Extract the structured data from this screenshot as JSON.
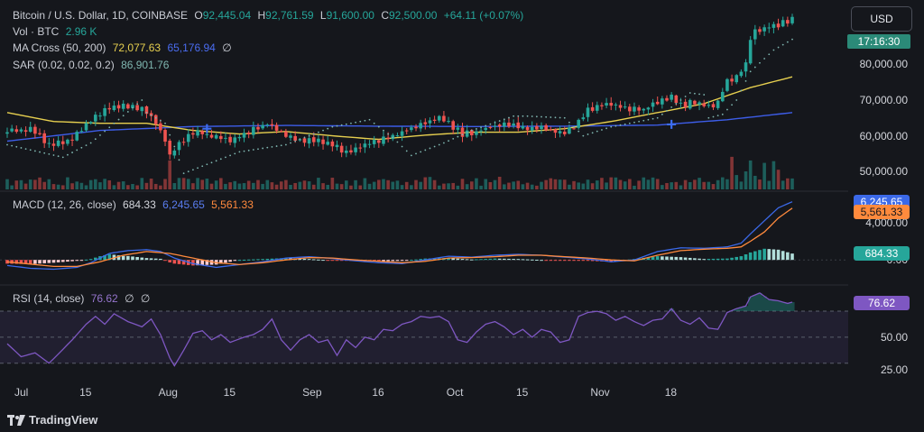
{
  "header": {
    "symbol": "Bitcoin / U.S. Dollar, 1D, COINBASE",
    "open_label": "O",
    "open": "92,445.04",
    "high_label": "H",
    "high": "92,761.59",
    "low_label": "L",
    "low": "91,600.00",
    "close_label": "C",
    "close": "92,500.00",
    "change": "+64.11 (+0.07%)"
  },
  "vol": {
    "label": "Vol · BTC",
    "value": "2.96 K"
  },
  "ma": {
    "label": "MA Cross (50, 200)",
    "fast_value": "72,077.63",
    "slow_value": "65,176.94",
    "empty": "∅"
  },
  "sar": {
    "label": "SAR (0.02, 0.02, 0.2)",
    "value": "86,901.76"
  },
  "macd_legend": {
    "label": "MACD (12, 26, close)",
    "hist": "684.33",
    "macd": "6,245.65",
    "signal": "5,561.33"
  },
  "rsi_legend": {
    "label": "RSI (14, close)",
    "value": "76.62",
    "empty1": "∅",
    "empty2": "∅"
  },
  "currency_button": "USD",
  "countdown": "17:16:30",
  "brand": "TradingView",
  "colors": {
    "up": "#26a69a",
    "down": "#ef5350",
    "ma_fast": "#e6cf4f",
    "ma_slow": "#3d5de8",
    "sar": "#7fb6b0",
    "macd": "#3b69e8",
    "signal": "#ff8a3d",
    "rsi": "#7e57c2"
  },
  "chart_data": {
    "type": "candlestick",
    "panes": {
      "price": {
        "yticks": [
          50000,
          60000,
          70000,
          80000
        ],
        "ylim": [
          45000,
          96000
        ]
      },
      "macd": {
        "yticks": [
          0,
          4000
        ],
        "ylim": [
          -2500,
          6800
        ]
      },
      "rsi": {
        "yticks": [
          25,
          50,
          75
        ],
        "ylim": [
          18,
          86
        ],
        "band": [
          30,
          70
        ]
      }
    },
    "ytick_labels": {
      "price": [
        "50,000.00",
        "60,000.00",
        "70,000.00",
        "80,000.00"
      ],
      "macd": [
        "0.00",
        "4,000.00"
      ],
      "rsi": [
        "25.00",
        "50.00",
        "75.00"
      ]
    },
    "xtick_labels": [
      "Jul",
      "15",
      "Aug",
      "15",
      "Sep",
      "16",
      "Oct",
      "15",
      "Nov",
      "18"
    ],
    "anchors": {
      "close": [
        [
          0,
          61000
        ],
        [
          5,
          62000
        ],
        [
          9,
          57500
        ],
        [
          14,
          59000
        ],
        [
          17,
          63500
        ],
        [
          20,
          66500
        ],
        [
          24,
          68500
        ],
        [
          28,
          68000
        ],
        [
          30,
          66500
        ],
        [
          32,
          64000
        ],
        [
          34,
          58500
        ],
        [
          35,
          54500
        ],
        [
          37,
          58000
        ],
        [
          40,
          61000
        ],
        [
          44,
          60000
        ],
        [
          48,
          59000
        ],
        [
          52,
          61000
        ],
        [
          56,
          63500
        ],
        [
          60,
          60000
        ],
        [
          63,
          58800
        ],
        [
          66,
          59000
        ],
        [
          70,
          57500
        ],
        [
          73,
          55500
        ],
        [
          76,
          57000
        ],
        [
          79,
          58500
        ],
        [
          83,
          59500
        ],
        [
          88,
          63000
        ],
        [
          93,
          65000
        ],
        [
          96,
          62500
        ],
        [
          98,
          60500
        ],
        [
          101,
          61000
        ],
        [
          104,
          62500
        ],
        [
          107,
          63500
        ],
        [
          111,
          62500
        ],
        [
          115,
          62000
        ],
        [
          119,
          60500
        ],
        [
          122,
          62000
        ],
        [
          125,
          67000
        ],
        [
          129,
          69000
        ],
        [
          133,
          67500
        ],
        [
          137,
          67500
        ],
        [
          140,
          69000
        ],
        [
          143,
          71500
        ],
        [
          145,
          68500
        ],
        [
          148,
          69500
        ],
        [
          151,
          68000
        ],
        [
          153,
          69500
        ],
        [
          155,
          75500
        ],
        [
          157,
          76500
        ],
        [
          159,
          80000
        ],
        [
          160,
          87500
        ],
        [
          161,
          89500
        ],
        [
          163,
          90000
        ],
        [
          165,
          91000
        ],
        [
          167,
          91500
        ],
        [
          169,
          92500
        ]
      ],
      "ma_fast": [
        [
          0,
          66500
        ],
        [
          10,
          64000
        ],
        [
          20,
          63500
        ],
        [
          30,
          63500
        ],
        [
          40,
          61500
        ],
        [
          50,
          60500
        ],
        [
          60,
          61200
        ],
        [
          70,
          60000
        ],
        [
          80,
          59000
        ],
        [
          90,
          60200
        ],
        [
          100,
          61000
        ],
        [
          110,
          61000
        ],
        [
          120,
          62000
        ],
        [
          130,
          64000
        ],
        [
          140,
          66500
        ],
        [
          150,
          69000
        ],
        [
          160,
          73500
        ],
        [
          169,
          76500
        ]
      ],
      "ma_slow": [
        [
          0,
          58500
        ],
        [
          20,
          61500
        ],
        [
          40,
          62600
        ],
        [
          60,
          62900
        ],
        [
          80,
          62700
        ],
        [
          100,
          62600
        ],
        [
          120,
          62700
        ],
        [
          140,
          63000
        ],
        [
          155,
          64500
        ],
        [
          169,
          66500
        ]
      ],
      "sar": [
        [
          0,
          57500
        ],
        [
          12,
          54000
        ],
        [
          18,
          58000
        ],
        [
          29,
          70000
        ],
        [
          30,
          66500
        ],
        [
          34,
          63500
        ],
        [
          36,
          57000
        ],
        [
          38,
          49500
        ],
        [
          50,
          55500
        ],
        [
          60,
          57500
        ],
        [
          70,
          62500
        ],
        [
          78,
          64500
        ],
        [
          83,
          59500
        ],
        [
          87,
          54500
        ],
        [
          94,
          58000
        ],
        [
          100,
          61500
        ],
        [
          109,
          65500
        ],
        [
          112,
          65500
        ],
        [
          120,
          65000
        ],
        [
          124,
          60000
        ],
        [
          130,
          62500
        ],
        [
          140,
          65000
        ],
        [
          147,
          72000
        ],
        [
          150,
          71500
        ],
        [
          151,
          65000
        ],
        [
          154,
          66000
        ],
        [
          157,
          70000
        ],
        [
          160,
          78000
        ],
        [
          165,
          84000
        ],
        [
          169,
          87000
        ]
      ],
      "macd": [
        [
          0,
          -600
        ],
        [
          5,
          -900
        ],
        [
          10,
          -1000
        ],
        [
          15,
          -800
        ],
        [
          18,
          -300
        ],
        [
          22,
          700
        ],
        [
          26,
          1000
        ],
        [
          30,
          1100
        ],
        [
          33,
          900
        ],
        [
          36,
          200
        ],
        [
          40,
          -400
        ],
        [
          45,
          -800
        ],
        [
          50,
          -500
        ],
        [
          55,
          -200
        ],
        [
          60,
          200
        ],
        [
          65,
          350
        ],
        [
          70,
          150
        ],
        [
          75,
          -100
        ],
        [
          80,
          -300
        ],
        [
          85,
          -400
        ],
        [
          90,
          0
        ],
        [
          95,
          400
        ],
        [
          100,
          300
        ],
        [
          105,
          500
        ],
        [
          110,
          600
        ],
        [
          115,
          500
        ],
        [
          120,
          300
        ],
        [
          125,
          100
        ],
        [
          130,
          -200
        ],
        [
          135,
          0
        ],
        [
          140,
          900
        ],
        [
          145,
          1300
        ],
        [
          150,
          1250
        ],
        [
          155,
          1400
        ],
        [
          158,
          1800
        ],
        [
          160,
          2800
        ],
        [
          163,
          4200
        ],
        [
          166,
          5600
        ],
        [
          169,
          6245
        ]
      ],
      "signal": [
        [
          0,
          -200
        ],
        [
          10,
          -700
        ],
        [
          15,
          -700
        ],
        [
          20,
          -200
        ],
        [
          25,
          500
        ],
        [
          30,
          900
        ],
        [
          35,
          700
        ],
        [
          40,
          200
        ],
        [
          45,
          -300
        ],
        [
          50,
          -500
        ],
        [
          55,
          -300
        ],
        [
          60,
          0
        ],
        [
          65,
          250
        ],
        [
          70,
          200
        ],
        [
          75,
          0
        ],
        [
          80,
          -150
        ],
        [
          85,
          -300
        ],
        [
          90,
          -150
        ],
        [
          95,
          200
        ],
        [
          100,
          250
        ],
        [
          105,
          350
        ],
        [
          110,
          500
        ],
        [
          115,
          500
        ],
        [
          120,
          350
        ],
        [
          125,
          200
        ],
        [
          130,
          0
        ],
        [
          135,
          -100
        ],
        [
          140,
          500
        ],
        [
          145,
          1000
        ],
        [
          150,
          1150
        ],
        [
          155,
          1250
        ],
        [
          158,
          1400
        ],
        [
          160,
          2000
        ],
        [
          163,
          3000
        ],
        [
          166,
          4500
        ],
        [
          169,
          5561
        ]
      ],
      "rsi": [
        [
          0,
          45
        ],
        [
          3,
          35
        ],
        [
          6,
          38
        ],
        [
          9,
          30
        ],
        [
          11,
          37
        ],
        [
          14,
          48
        ],
        [
          17,
          60
        ],
        [
          19,
          66
        ],
        [
          21,
          60
        ],
        [
          23,
          68
        ],
        [
          26,
          62
        ],
        [
          29,
          58
        ],
        [
          31,
          64
        ],
        [
          33,
          52
        ],
        [
          35,
          34
        ],
        [
          36,
          28
        ],
        [
          38,
          40
        ],
        [
          40,
          53
        ],
        [
          42,
          55
        ],
        [
          44,
          48
        ],
        [
          46,
          52
        ],
        [
          48,
          46
        ],
        [
          51,
          50
        ],
        [
          53,
          52
        ],
        [
          55,
          56
        ],
        [
          57,
          64
        ],
        [
          59,
          48
        ],
        [
          61,
          40
        ],
        [
          63,
          48
        ],
        [
          65,
          52
        ],
        [
          67,
          46
        ],
        [
          69,
          48
        ],
        [
          71,
          36
        ],
        [
          73,
          48
        ],
        [
          75,
          42
        ],
        [
          77,
          50
        ],
        [
          79,
          48
        ],
        [
          81,
          56
        ],
        [
          83,
          55
        ],
        [
          85,
          60
        ],
        [
          87,
          62
        ],
        [
          89,
          66
        ],
        [
          91,
          65
        ],
        [
          93,
          66
        ],
        [
          95,
          62
        ],
        [
          97,
          48
        ],
        [
          99,
          46
        ],
        [
          101,
          54
        ],
        [
          103,
          60
        ],
        [
          105,
          62
        ],
        [
          107,
          58
        ],
        [
          109,
          52
        ],
        [
          111,
          56
        ],
        [
          113,
          50
        ],
        [
          115,
          56
        ],
        [
          117,
          54
        ],
        [
          119,
          46
        ],
        [
          121,
          48
        ],
        [
          123,
          66
        ],
        [
          125,
          69
        ],
        [
          127,
          70
        ],
        [
          129,
          68
        ],
        [
          131,
          63
        ],
        [
          133,
          66
        ],
        [
          135,
          62
        ],
        [
          137,
          59
        ],
        [
          139,
          63
        ],
        [
          141,
          64
        ],
        [
          143,
          72
        ],
        [
          145,
          63
        ],
        [
          147,
          60
        ],
        [
          149,
          65
        ],
        [
          151,
          57
        ],
        [
          153,
          56
        ],
        [
          155,
          69
        ],
        [
          157,
          72
        ],
        [
          159,
          74
        ],
        [
          160,
          81
        ],
        [
          162,
          84
        ],
        [
          164,
          79
        ],
        [
          166,
          78
        ],
        [
          168,
          76
        ],
        [
          169,
          77
        ]
      ]
    }
  }
}
